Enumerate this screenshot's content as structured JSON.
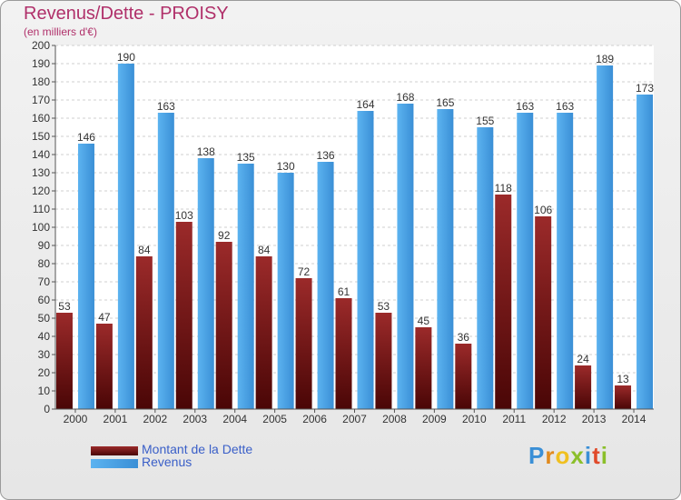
{
  "chart_data": {
    "type": "bar",
    "title": "Revenus/Dette - PROISY",
    "subtitle": "(en milliers d'€)",
    "categories": [
      "2000",
      "2001",
      "2002",
      "2003",
      "2004",
      "2005",
      "2006",
      "2007",
      "2008",
      "2009",
      "2010",
      "2011",
      "2012",
      "2013",
      "2014"
    ],
    "series": [
      {
        "name": "Montant de la Dette",
        "color": "#8b1a1a",
        "values": [
          53,
          47,
          84,
          103,
          92,
          84,
          72,
          61,
          53,
          45,
          36,
          118,
          106,
          24,
          13
        ]
      },
      {
        "name": "Revenus",
        "color": "#4aa3e4",
        "values": [
          146,
          190,
          163,
          138,
          135,
          130,
          136,
          164,
          168,
          165,
          155,
          163,
          163,
          189,
          173
        ]
      }
    ],
    "ylim": [
      0,
      200
    ],
    "yticks": [
      0,
      10,
      20,
      30,
      40,
      50,
      60,
      70,
      80,
      90,
      100,
      110,
      120,
      130,
      140,
      150,
      160,
      170,
      180,
      190,
      200
    ],
    "grid": true,
    "legend_position": "bottom-left",
    "xlabel": "",
    "ylabel": ""
  },
  "logo": {
    "text": "Proxiti"
  }
}
